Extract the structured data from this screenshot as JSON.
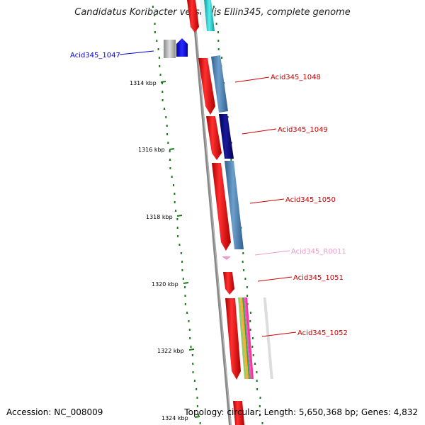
{
  "title": "Candidatus Koribacter versatilis Ellin345, complete genome",
  "accession": "Accession: NC_008009",
  "topology": "Topology: circular; Length: 5,650,368 bp; Genes: 4,832",
  "ticks": [
    "1314 kbp",
    "1316 kbp",
    "1318 kbp",
    "1320 kbp",
    "1322 kbp",
    "1324 kbp"
  ],
  "genes": [
    {
      "label": "Acid345_1047",
      "color": "#0000cc"
    },
    {
      "label": "Acid345_1048",
      "color": "#cc0000"
    },
    {
      "label": "Acid345_1049",
      "color": "#cc0000"
    },
    {
      "label": "Acid345_1050",
      "color": "#cc0000"
    },
    {
      "label": "Acid345_R0011",
      "color": "#ee99cc"
    },
    {
      "label": "Acid345_1051",
      "color": "#cc0000"
    },
    {
      "label": "Acid345_1052",
      "color": "#cc0000"
    }
  ],
  "colors": {
    "cds": "#ee1111",
    "cog_blue": "#4a7fb0",
    "cog_navy": "#0a0a7a",
    "cog_cyan": "#22cccc",
    "rna": "#ee99cc",
    "backbone": "#777777",
    "gc_dots": "#1a7a1a"
  }
}
